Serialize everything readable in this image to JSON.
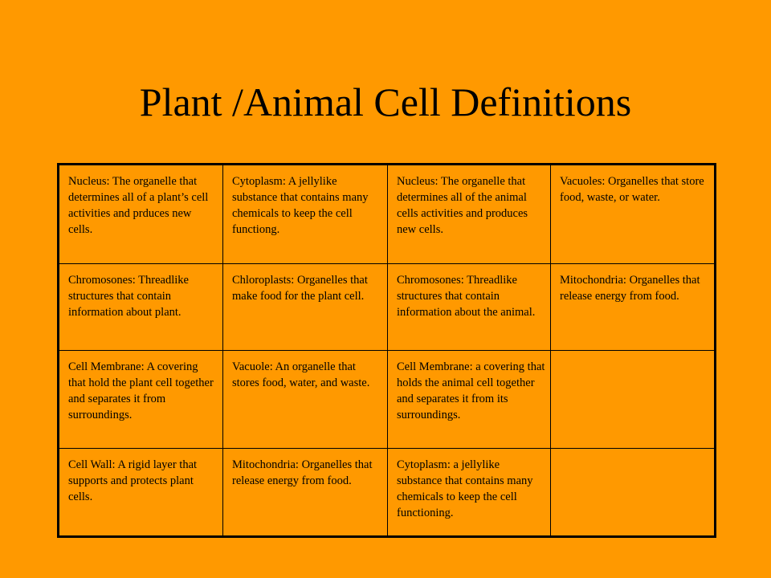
{
  "title": "Plant /Animal Cell Definitions",
  "table": {
    "rows": [
      [
        "Nucleus:  The organelle that determines all of a plant’s cell activities and prduces new cells.",
        "Cytoplasm:  A jellylike substance that contains many chemicals to keep the cell   functiong.",
        "Nucleus:  The organelle that determines all of the animal cells activities and produces new cells.",
        "Vacuoles:  Organelles that store food, waste, or water."
      ],
      [
        "Chromosones: Threadlike structures that contain information about plant.",
        "Chloroplasts: Organelles that  make food for the plant cell.",
        "Chromosones: Threadlike structures that contain information about  the animal.",
        "Mitochondria: Organelles that release energy from food."
      ],
      [
        "Cell Membrane:  A covering  that hold the plant cell  together and separates it from surroundings.",
        "Vacuole:  An organelle that stores food, water, and waste.",
        "Cell Membrane:  a covering  that holds the animal cell   together and separates it from its surroundings.",
        ""
      ],
      [
        "Cell Wall:  A rigid layer that supports and protects plant cells.",
        "Mitochondria: Organelles that  release energy from food.",
        "Cytoplasm:  a jellylike substance that contains many chemicals to keep the cell   functioning.",
        ""
      ]
    ]
  }
}
